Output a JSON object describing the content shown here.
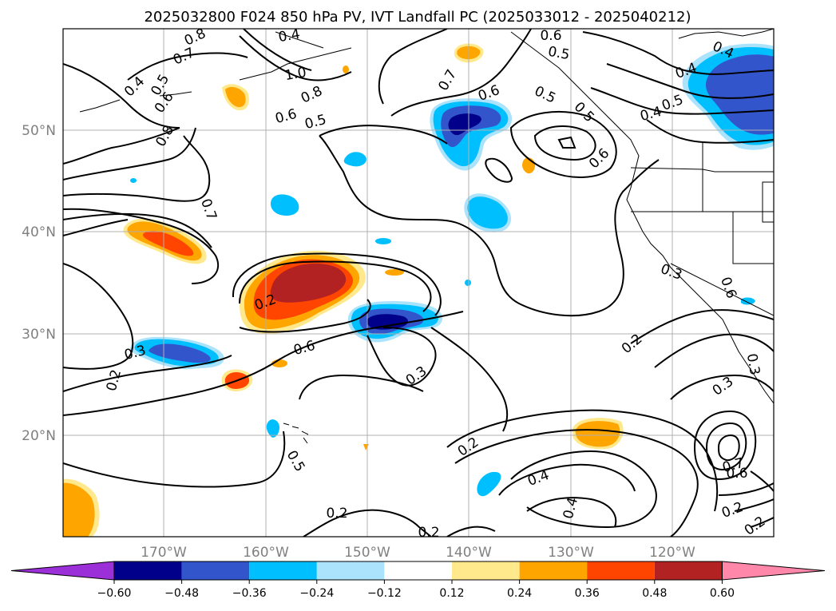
{
  "title": "2025032800 F024 850 hPa PV, IVT Landfall PC (2025033012 - 2025040212)",
  "lon_ticks": [
    "170°W",
    "160°W",
    "150°W",
    "140°W",
    "130°W",
    "120°W"
  ],
  "lat_ticks": [
    "50°N",
    "40°N",
    "30°N",
    "20°N"
  ],
  "colorbar": {
    "colors": [
      "#9b30d8",
      "#00008b",
      "#3355cc",
      "#00bfff",
      "#aae3fb",
      "#ffffff",
      "#ffe98c",
      "#ffa500",
      "#ff4500",
      "#b22222",
      "#ff88aa"
    ],
    "ticks": [
      "−0.60",
      "−0.48",
      "−0.36",
      "−0.24",
      "−0.12",
      "0.12",
      "0.24",
      "0.36",
      "0.48",
      "0.60"
    ]
  },
  "contour_labels": [
    "0.8",
    "0.7",
    "0.4",
    "0.5",
    "0.6",
    "0.8",
    "1.0",
    "0.8",
    "0.6",
    "0.5",
    "0.4",
    "0.6",
    "0.5",
    "0.7",
    "0.5",
    "0.6",
    "0.5",
    "0.4",
    "0.4",
    "0.5",
    "0.4",
    "0.7",
    "0.6",
    "0.3",
    "0.3",
    "0.2",
    "0.3",
    "0.6",
    "0.2",
    "0.5",
    "0.2",
    "0.2",
    "0.2",
    "0.4",
    "0.4",
    "0.2",
    "0.3",
    "0.2",
    "0.6",
    "0.7",
    "0.6",
    "0.3",
    "0.2"
  ]
}
